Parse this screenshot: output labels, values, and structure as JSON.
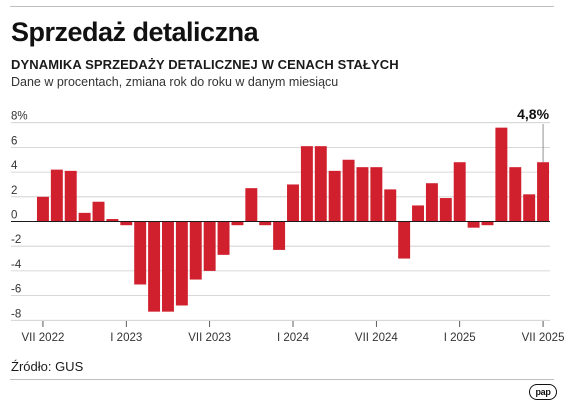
{
  "header": {
    "title": "Sprzedaż detaliczna",
    "subtitle": "DYNAMIKA SPRZEDAŻY DETALICZNEJ W CENACH STAŁYCH",
    "description": "Dane w procentach, zmiana rok do roku w danym miesiącu"
  },
  "footer": {
    "source": "Źródło: GUS",
    "logo": "pap"
  },
  "colors": {
    "bar": "#d0202e",
    "axis": "#1a1a1a",
    "grid": "#cccccc"
  },
  "chart_data": {
    "type": "bar",
    "categories": [
      "2022-07",
      "2022-08",
      "2022-09",
      "2022-10",
      "2022-11",
      "2022-12",
      "2023-01",
      "2023-02",
      "2023-03",
      "2023-04",
      "2023-05",
      "2023-06",
      "2023-07",
      "2023-08",
      "2023-09",
      "2023-10",
      "2023-11",
      "2023-12",
      "2024-01",
      "2024-02",
      "2024-03",
      "2024-04",
      "2024-05",
      "2024-06",
      "2024-07",
      "2024-08",
      "2024-09",
      "2024-10",
      "2024-11",
      "2024-12",
      "2025-01",
      "2025-02",
      "2025-03",
      "2025-04",
      "2025-05",
      "2025-06",
      "2025-07"
    ],
    "values": [
      2.0,
      4.2,
      4.1,
      0.7,
      1.6,
      0.2,
      -0.3,
      -5.1,
      -7.3,
      -7.3,
      -6.8,
      -4.7,
      -4.0,
      -2.7,
      -0.3,
      2.7,
      -0.3,
      -2.3,
      3.0,
      6.1,
      6.1,
      4.1,
      5.0,
      4.4,
      4.4,
      2.6,
      -3.0,
      1.3,
      3.1,
      1.9,
      4.8,
      -0.5,
      -0.3,
      7.6,
      4.4,
      2.2,
      4.8
    ],
    "tick_labels": [
      {
        "index": 0,
        "label": "VII 2022"
      },
      {
        "index": 6,
        "label": "I 2023"
      },
      {
        "index": 12,
        "label": "VII 2023"
      },
      {
        "index": 18,
        "label": "I 2024"
      },
      {
        "index": 24,
        "label": "VII 2024"
      },
      {
        "index": 30,
        "label": "I 2025"
      },
      {
        "index": 36,
        "label": "VII 2025"
      }
    ],
    "y_ticks": [
      "8%",
      "6",
      "4",
      "2",
      "0",
      "-2",
      "-4",
      "-6",
      "-8"
    ],
    "y_tick_values": [
      8,
      6,
      4,
      2,
      0,
      -2,
      -4,
      -6,
      -8
    ],
    "ylim": [
      -8.7,
      8.7
    ],
    "grid": true,
    "annotation": {
      "index": 36,
      "label": "4,8%"
    }
  }
}
